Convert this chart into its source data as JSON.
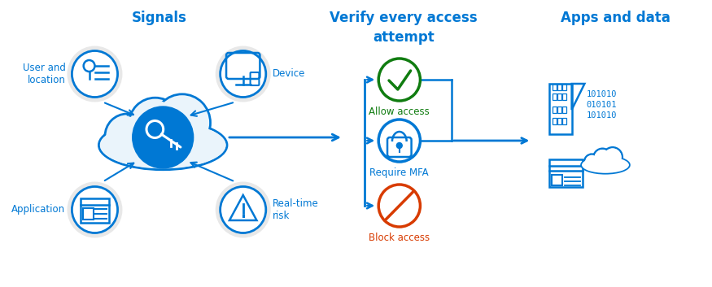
{
  "bg_color": "#ffffff",
  "blue": "#0078d4",
  "green": "#107c10",
  "orange": "#d83b01",
  "title_signals": "Signals",
  "title_verify": "Verify every access\nattempt",
  "title_apps": "Apps and data",
  "label_user": "User and\nlocation",
  "label_device": "Device",
  "label_application": "Application",
  "label_realtime": "Real-time\nrisk",
  "label_allow": "Allow access",
  "label_mfa": "Require MFA",
  "label_block": "Block access",
  "binary_top": "101010\n010101\n101010",
  "figw": 8.75,
  "figh": 3.53,
  "dpi": 100
}
